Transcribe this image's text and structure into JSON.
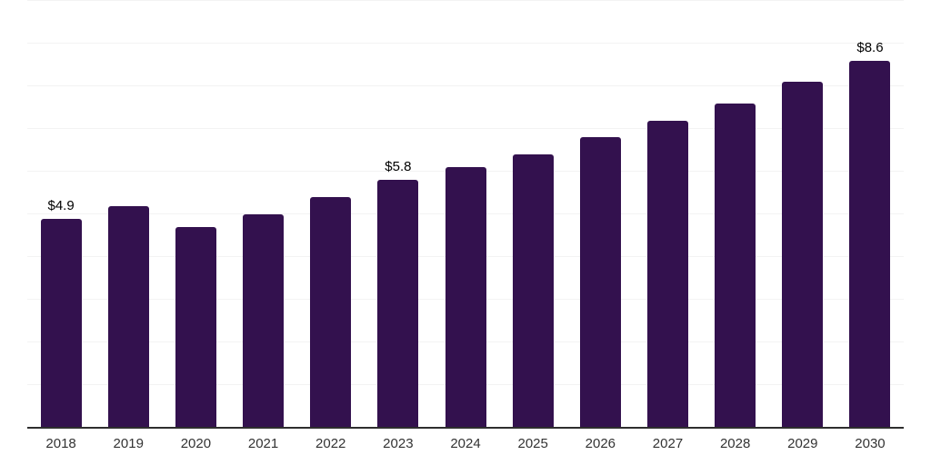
{
  "chart_data": {
    "type": "bar",
    "title": "",
    "xlabel": "",
    "ylabel": "",
    "categories": [
      "2018",
      "2019",
      "2020",
      "2021",
      "2022",
      "2023",
      "2024",
      "2025",
      "2026",
      "2027",
      "2028",
      "2029",
      "2030"
    ],
    "values": [
      4.9,
      5.2,
      4.7,
      5.0,
      5.4,
      5.8,
      6.1,
      6.4,
      6.8,
      7.2,
      7.6,
      8.1,
      8.6
    ],
    "data_labels": [
      "$4.9",
      "",
      "",
      "",
      "",
      "$5.8",
      "",
      "",
      "",
      "",
      "",
      "",
      "$8.6"
    ],
    "ylim": [
      0,
      10
    ],
    "grid_step": 1,
    "grid": "horizontal",
    "legend": "none",
    "colors": {
      "bar": "#33114e",
      "gridline": "#f3f3f3",
      "axis_line": "#2e2e2e",
      "tick_label": "#333333",
      "data_label": "#000000",
      "background": "#ffffff"
    }
  }
}
